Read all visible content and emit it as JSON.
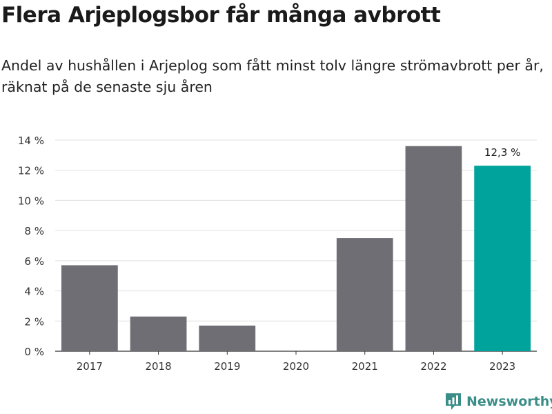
{
  "title": "Flera Arjeplogsbor får många avbrott",
  "subtitle": "Andel av hushållen i Arjeplog som fått minst tolv längre strömavbrott per år, räknat på de senaste sju åren",
  "brand": {
    "name": "Newsworthy",
    "color": "#3b8e88"
  },
  "chart_data": {
    "type": "bar",
    "title": "Flera Arjeplogsbor får många avbrott",
    "subtitle": "Andel av hushållen i Arjeplog som fått minst tolv längre strömavbrott per år, räknat på de senaste sju åren",
    "categories": [
      "2017",
      "2018",
      "2019",
      "2020",
      "2021",
      "2022",
      "2023"
    ],
    "values": [
      5.7,
      2.3,
      1.7,
      0,
      7.5,
      13.6,
      12.3
    ],
    "ylim": [
      0,
      14
    ],
    "yticks": [
      0,
      2,
      4,
      6,
      8,
      10,
      12,
      14
    ],
    "ytick_labels": [
      "0 %",
      "2 %",
      "4 %",
      "6 %",
      "8 %",
      "10 %",
      "12 %",
      "14 %"
    ],
    "grid": true,
    "bar_color": "#6f6e74",
    "highlight_color": "#00a39b",
    "highlight_index": 6,
    "annotation": {
      "index": 6,
      "text": "12,3 %"
    }
  }
}
